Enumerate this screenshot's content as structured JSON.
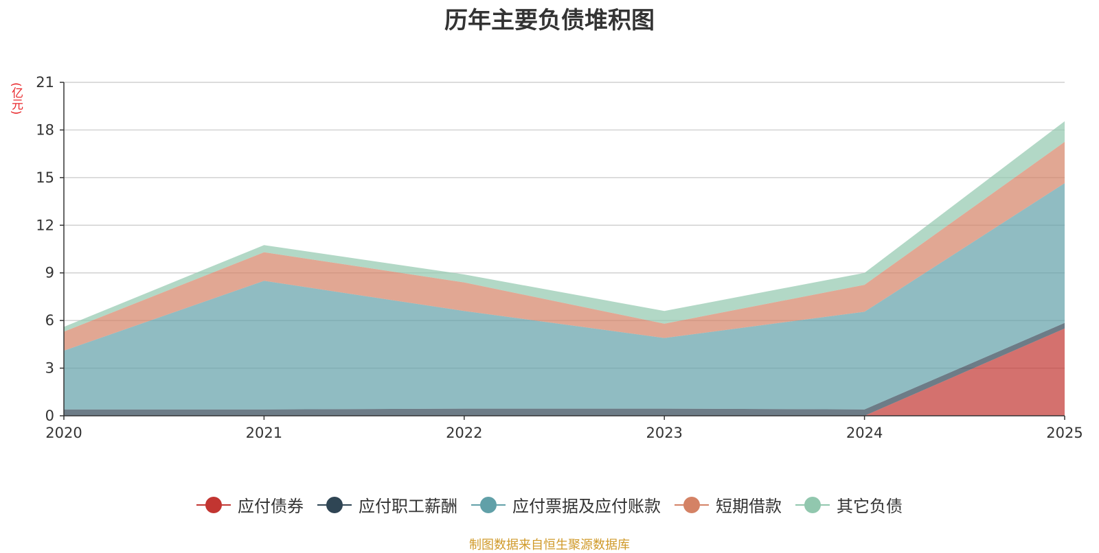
{
  "chart_data": {
    "type": "area",
    "stacked": true,
    "title": "历年主要负债堆积图",
    "ylabel": "(亿元)",
    "ylim": [
      0,
      21
    ],
    "yticks": [
      0,
      3,
      6,
      9,
      12,
      15,
      18,
      21
    ],
    "x": [
      "2020",
      "2021",
      "2022",
      "2023",
      "2024",
      "2025"
    ],
    "series": [
      {
        "name": "应付债券",
        "color": "#c23531",
        "values": [
          0,
          0,
          0,
          0,
          0,
          5.5
        ]
      },
      {
        "name": "应付职工薪酬",
        "color": "#2f4554",
        "values": [
          0.4,
          0.4,
          0.45,
          0.45,
          0.4,
          0.35
        ]
      },
      {
        "name": "应付票据及应付账款",
        "color": "#61a0a8",
        "values": [
          3.7,
          8.1,
          6.15,
          4.45,
          6.15,
          8.8
        ]
      },
      {
        "name": "短期借款",
        "color": "#d48265",
        "values": [
          1.2,
          1.8,
          1.8,
          0.9,
          1.7,
          2.6
        ]
      },
      {
        "name": "其它负债",
        "color": "#91c7ae",
        "values": [
          0.3,
          0.45,
          0.5,
          0.8,
          0.75,
          1.3
        ]
      }
    ],
    "grid": true,
    "legend": "bottom-center"
  },
  "source_note": "制图数据来自恒生聚源数据库"
}
